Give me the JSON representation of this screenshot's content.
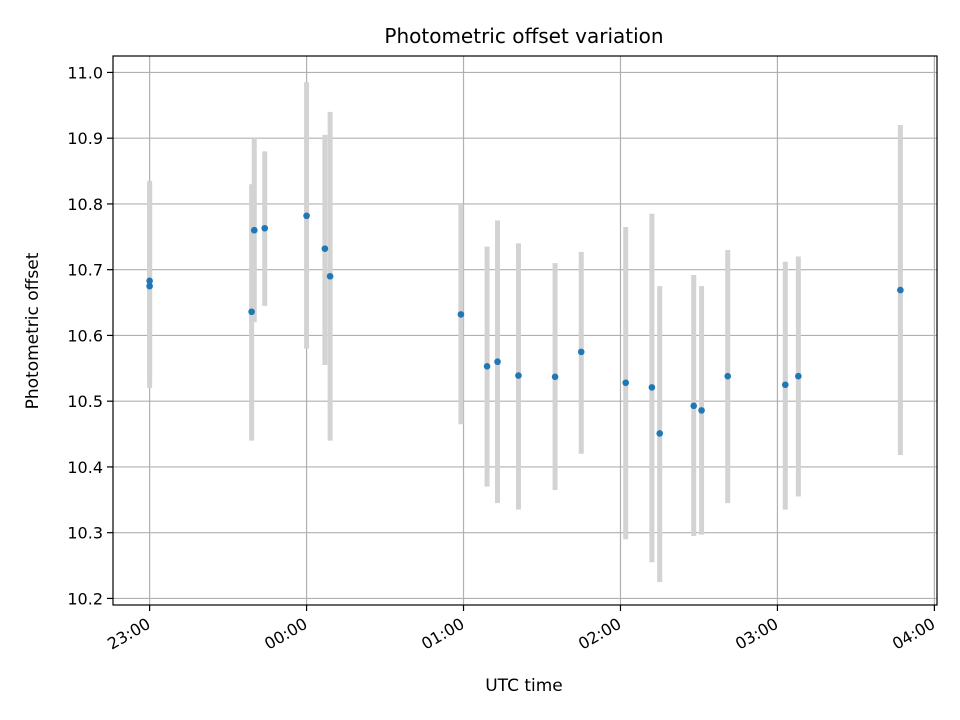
{
  "chart_data": {
    "type": "scatter",
    "title": "Photometric offset variation",
    "xlabel": "UTC time",
    "ylabel": "Photometric offset",
    "xlim": [
      "22:46",
      "04:01"
    ],
    "ylim": [
      10.19,
      11.025
    ],
    "x_ticks": [
      "23:00",
      "00:00",
      "01:00",
      "02:00",
      "03:00",
      "04:00"
    ],
    "y_ticks": [
      "10.2",
      "10.3",
      "10.4",
      "10.5",
      "10.6",
      "10.7",
      "10.8",
      "10.9",
      "11.0"
    ],
    "grid": true,
    "colors": {
      "point": "#1f77b4",
      "errorbar": "#d3d3d3",
      "grid": "#b0b0b0",
      "axes": "#000000"
    },
    "points": [
      {
        "time": "23:00",
        "y": 10.675,
        "ylo": 10.52,
        "yhi": 10.83
      },
      {
        "time": "23:00",
        "y": 10.683,
        "ylo": 10.53,
        "yhi": 10.835
      },
      {
        "time": "23:39",
        "y": 10.636,
        "ylo": 10.44,
        "yhi": 10.83
      },
      {
        "time": "23:40",
        "y": 10.76,
        "ylo": 10.62,
        "yhi": 10.9
      },
      {
        "time": "23:44",
        "y": 10.763,
        "ylo": 10.645,
        "yhi": 10.88
      },
      {
        "time": "00:00",
        "y": 10.782,
        "ylo": 10.58,
        "yhi": 10.985
      },
      {
        "time": "00:07",
        "y": 10.732,
        "ylo": 10.555,
        "yhi": 10.905
      },
      {
        "time": "00:09",
        "y": 10.69,
        "ylo": 10.44,
        "yhi": 10.94
      },
      {
        "time": "00:59",
        "y": 10.632,
        "ylo": 10.465,
        "yhi": 10.8
      },
      {
        "time": "01:09",
        "y": 10.553,
        "ylo": 10.37,
        "yhi": 10.735
      },
      {
        "time": "01:13",
        "y": 10.56,
        "ylo": 10.345,
        "yhi": 10.775
      },
      {
        "time": "01:21",
        "y": 10.539,
        "ylo": 10.335,
        "yhi": 10.74
      },
      {
        "time": "01:35",
        "y": 10.537,
        "ylo": 10.365,
        "yhi": 10.71
      },
      {
        "time": "01:45",
        "y": 10.575,
        "ylo": 10.42,
        "yhi": 10.727
      },
      {
        "time": "02:02",
        "y": 10.528,
        "ylo": 10.29,
        "yhi": 10.765
      },
      {
        "time": "02:12",
        "y": 10.521,
        "ylo": 10.255,
        "yhi": 10.785
      },
      {
        "time": "02:15",
        "y": 10.451,
        "ylo": 10.225,
        "yhi": 10.675
      },
      {
        "time": "02:28",
        "y": 10.493,
        "ylo": 10.295,
        "yhi": 10.692
      },
      {
        "time": "02:31",
        "y": 10.486,
        "ylo": 10.297,
        "yhi": 10.675
      },
      {
        "time": "02:41",
        "y": 10.538,
        "ylo": 10.345,
        "yhi": 10.73
      },
      {
        "time": "03:03",
        "y": 10.525,
        "ylo": 10.335,
        "yhi": 10.712
      },
      {
        "time": "03:08",
        "y": 10.538,
        "ylo": 10.355,
        "yhi": 10.72
      },
      {
        "time": "03:47",
        "y": 10.669,
        "ylo": 10.418,
        "yhi": 10.92
      }
    ]
  }
}
